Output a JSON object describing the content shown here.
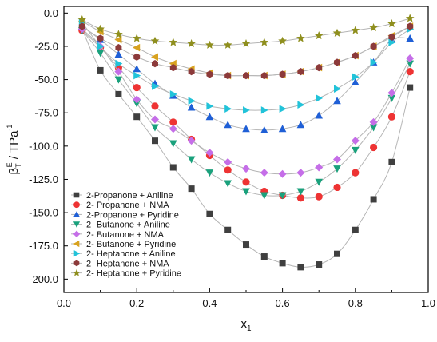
{
  "chart_data": {
    "type": "scatter",
    "xlabel": "x",
    "xlabel_sub": "1",
    "ylabel_main": "β",
    "ylabel_sub": "T",
    "ylabel_sup": "E",
    "ylabel_unit": " / TPa",
    "ylabel_unit_sup": "-1",
    "xlim": [
      0.0,
      1.0
    ],
    "ylim": [
      -210.0,
      5.0
    ],
    "xticks": [
      "0.0",
      "0.2",
      "0.4",
      "0.6",
      "0.8",
      "1.0"
    ],
    "yticks": [
      "0.0",
      "-25.0",
      "-50.0",
      "-75.0",
      "-100.0",
      "-125.0",
      "-150.0",
      "-175.0",
      "-200.0"
    ],
    "legend_position": "bottom-left",
    "series": [
      {
        "name": "2-Propanone + Aniline",
        "color": "#3f3f3f",
        "marker": "square",
        "x": [
          0.05,
          0.1,
          0.15,
          0.2,
          0.25,
          0.3,
          0.35,
          0.4,
          0.45,
          0.5,
          0.55,
          0.6,
          0.65,
          0.7,
          0.75,
          0.8,
          0.85,
          0.9,
          0.95
        ],
        "y": [
          -12,
          -43,
          -61,
          -78,
          -96,
          -116,
          -132,
          -151,
          -163,
          -174,
          -183,
          -188,
          -191,
          -189,
          -181,
          -163,
          -140,
          -112,
          -56
        ]
      },
      {
        "name": "2- Propanone + NMA",
        "color": "#ee3333",
        "marker": "circle",
        "x": [
          0.05,
          0.1,
          0.15,
          0.2,
          0.25,
          0.3,
          0.35,
          0.4,
          0.45,
          0.5,
          0.55,
          0.6,
          0.65,
          0.7,
          0.75,
          0.8,
          0.85,
          0.9,
          0.95
        ],
        "y": [
          -13,
          -26,
          -41,
          -56,
          -70,
          -82,
          -95,
          -107,
          -118,
          -127,
          -134,
          -137,
          -139,
          -138,
          -131,
          -120,
          -101,
          -78,
          -44
        ]
      },
      {
        "name": "2-Propanone + Pyridine",
        "color": "#1f5fd6",
        "marker": "triangle-up",
        "x": [
          0.05,
          0.1,
          0.15,
          0.2,
          0.25,
          0.3,
          0.35,
          0.4,
          0.45,
          0.5,
          0.55,
          0.6,
          0.65,
          0.7,
          0.75,
          0.8,
          0.85,
          0.9,
          0.95
        ],
        "y": [
          -10,
          -20,
          -31,
          -42,
          -53,
          -62,
          -71,
          -78,
          -84,
          -87,
          -88,
          -87,
          -84,
          -77,
          -66,
          -52,
          -37,
          -20,
          -19
        ]
      },
      {
        "name": "2- Butanone + Aniline",
        "color": "#1aa17c",
        "marker": "triangle-down",
        "x": [
          0.05,
          0.1,
          0.15,
          0.2,
          0.25,
          0.3,
          0.35,
          0.4,
          0.45,
          0.5,
          0.55,
          0.6,
          0.65,
          0.7,
          0.75,
          0.8,
          0.85,
          0.9,
          0.95
        ],
        "y": [
          -13,
          -30,
          -50,
          -68,
          -86,
          -98,
          -110,
          -120,
          -128,
          -134,
          -137,
          -137,
          -134,
          -127,
          -117,
          -103,
          -86,
          -64,
          -38
        ]
      },
      {
        "name": "2- Butanone + NMA",
        "color": "#c56ee8",
        "marker": "diamond",
        "x": [
          0.05,
          0.1,
          0.15,
          0.2,
          0.25,
          0.3,
          0.35,
          0.4,
          0.45,
          0.5,
          0.55,
          0.6,
          0.65,
          0.7,
          0.75,
          0.8,
          0.85,
          0.9,
          0.95
        ],
        "y": [
          -12,
          -25,
          -44,
          -65,
          -80,
          -87,
          -96,
          -105,
          -112,
          -117,
          -120,
          -121,
          -120,
          -116,
          -110,
          -96,
          -82,
          -60,
          -34
        ]
      },
      {
        "name": "2- Butanone + Pyridine",
        "color": "#d8a21f",
        "marker": "triangle-left",
        "x": [
          0.05,
          0.1,
          0.15,
          0.2,
          0.25,
          0.3,
          0.35,
          0.4,
          0.45,
          0.5,
          0.55,
          0.6,
          0.65,
          0.7,
          0.75,
          0.8,
          0.85,
          0.9,
          0.95
        ],
        "y": [
          -6,
          -14,
          -20,
          -26,
          -33,
          -38,
          -42,
          -45,
          -47,
          -47,
          -47,
          -46,
          -44,
          -41,
          -37,
          -32,
          -25,
          -17,
          -10
        ]
      },
      {
        "name": "2- Heptanone + Aniline",
        "color": "#22c3d9",
        "marker": "triangle-right",
        "x": [
          0.05,
          0.1,
          0.15,
          0.2,
          0.25,
          0.3,
          0.35,
          0.4,
          0.45,
          0.5,
          0.55,
          0.6,
          0.65,
          0.7,
          0.75,
          0.8,
          0.85,
          0.9,
          0.95
        ],
        "y": [
          -7,
          -25,
          -38,
          -47,
          -55,
          -61,
          -66,
          -70,
          -72,
          -73,
          -73,
          -72,
          -69,
          -64,
          -57,
          -48,
          -37,
          -22,
          -12
        ]
      },
      {
        "name": "2- Heptanone + NMA",
        "color": "#8c3a3a",
        "marker": "hexagon",
        "x": [
          0.05,
          0.1,
          0.15,
          0.2,
          0.25,
          0.3,
          0.35,
          0.4,
          0.45,
          0.5,
          0.55,
          0.6,
          0.65,
          0.7,
          0.75,
          0.8,
          0.85,
          0.9,
          0.95
        ],
        "y": [
          -10,
          -19,
          -26,
          -33,
          -38,
          -41,
          -44,
          -46,
          -47,
          -47,
          -47,
          -46,
          -44,
          -41,
          -37,
          -32,
          -25,
          -18,
          -10
        ]
      },
      {
        "name": "2- Heptanone + Pyridine",
        "color": "#8f8f1e",
        "marker": "star",
        "x": [
          0.05,
          0.1,
          0.15,
          0.2,
          0.25,
          0.3,
          0.35,
          0.4,
          0.45,
          0.5,
          0.55,
          0.6,
          0.65,
          0.7,
          0.75,
          0.8,
          0.85,
          0.9,
          0.95
        ],
        "y": [
          -5,
          -12,
          -16,
          -19,
          -21,
          -22,
          -23,
          -24,
          -24,
          -23,
          -22,
          -21,
          -19,
          -17,
          -15,
          -13,
          -11,
          -8,
          -4
        ]
      }
    ]
  }
}
